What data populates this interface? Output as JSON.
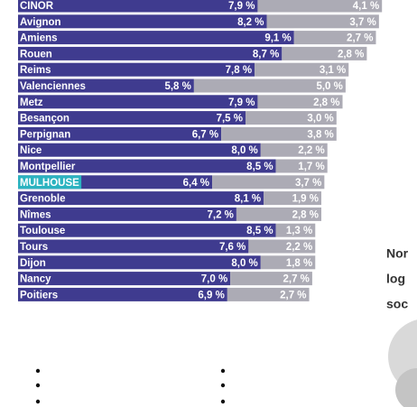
{
  "chart_data": {
    "type": "bar",
    "categories": [
      "CINOR",
      "Avignon",
      "Amiens",
      "Rouen",
      "Reims",
      "Valenciennes",
      "Metz",
      "Besançon",
      "Perpignan",
      "Nice",
      "Montpellier",
      "MULHOUSE",
      "Grenoble",
      "Nîmes",
      "Toulouse",
      "Tours",
      "Dijon",
      "Nancy",
      "Poitiers"
    ],
    "series": [
      {
        "color": "#3f3b8f",
        "values": [
          7.9,
          8.2,
          9.1,
          8.7,
          7.8,
          5.8,
          7.9,
          7.5,
          6.7,
          8.0,
          8.5,
          6.4,
          8.1,
          7.2,
          8.5,
          7.6,
          8.0,
          7.0,
          6.9
        ],
        "value_labels": [
          "7,9 %",
          "8,2 %",
          "9,1 %",
          "8,7 %",
          "7,8 %",
          "5,8 %",
          "7,9 %",
          "7,5 %",
          "6,7 %",
          "8,0 %",
          "8,5 %",
          "6,4 %",
          "8,1 %",
          "7,2 %",
          "8,5 %",
          "7,6 %",
          "8,0 %",
          "7,0 %",
          "6,9 %"
        ]
      },
      {
        "color": "#acabb5",
        "values": [
          4.1,
          3.7,
          2.7,
          2.8,
          3.1,
          5.0,
          2.8,
          3.0,
          3.8,
          2.2,
          1.7,
          3.7,
          1.9,
          2.8,
          1.3,
          2.2,
          1.8,
          2.7,
          2.7
        ],
        "value_labels": [
          "4,1 %",
          "3,7 %",
          "2,7 %",
          "2,8 %",
          "3,1 %",
          "5,0 %",
          "2,8 %",
          "3,0 %",
          "3,8 %",
          "2,2 %",
          "1,7 %",
          "3,7 %",
          "1,9 %",
          "2,8 %",
          "1,3 %",
          "2,2 %",
          "1,8 %",
          "2,7 %",
          "2,7 %"
        ]
      }
    ],
    "highlight": [
      11
    ],
    "highlight_color": "#2bb3c0",
    "side_text": [
      "Nor",
      "log",
      "soc"
    ]
  }
}
